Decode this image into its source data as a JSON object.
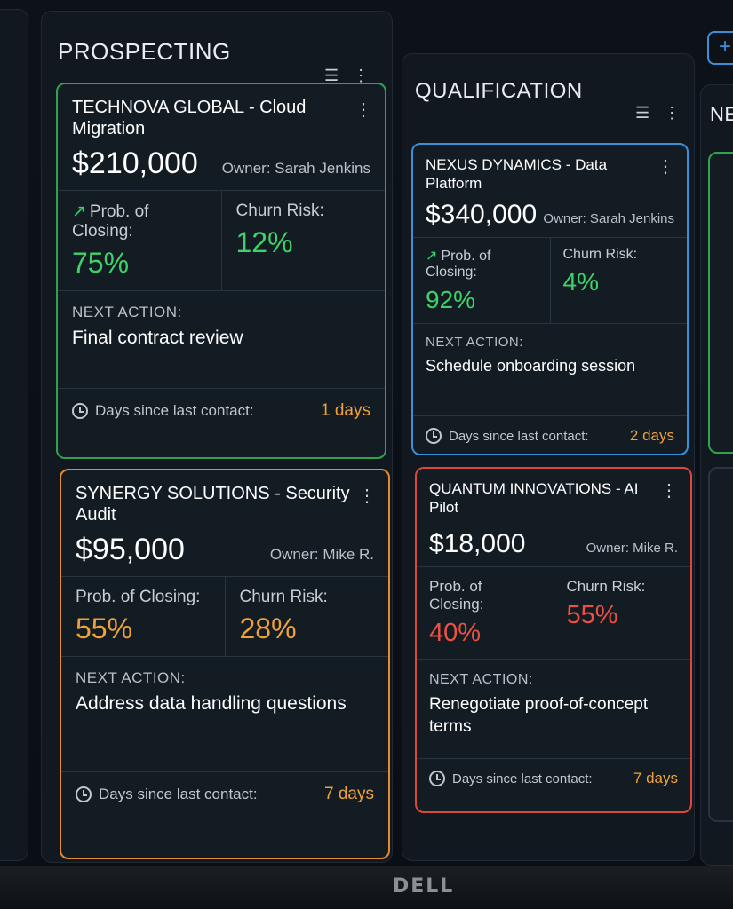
{
  "columns": {
    "prospecting": {
      "title": "PROSPECTING",
      "cards": [
        {
          "title": "TECHNOVA GLOBAL - Cloud Migration",
          "amount": "$210,000",
          "owner": "Owner: Sarah Jenkins",
          "prob_label": "Prob. of Closing:",
          "prob_value": "75%",
          "churn_label": "Churn Risk:",
          "churn_value": "12%",
          "action_label": "NEXT ACTION:",
          "action_text": "Final contract review",
          "contact_label": "Days since last contact:",
          "days": "1 days",
          "status_color": "#2ea44f"
        },
        {
          "title": "SYNERGY SOLUTIONS - Security Audit",
          "amount": "$95,000",
          "owner": "Owner: Mike R.",
          "prob_label": "Prob. of Closing:",
          "prob_value": "55%",
          "churn_label": "Churn Risk:",
          "churn_value": "28%",
          "action_label": "NEXT ACTION:",
          "action_text": "Address data handling questions",
          "contact_label": "Days since last contact:",
          "days": "7 days",
          "status_color": "#e58a2e"
        }
      ]
    },
    "qualification": {
      "title": "QUALIFICATION",
      "cards": [
        {
          "title": "NEXUS DYNAMICS - Data Platform",
          "amount": "$340,000",
          "owner": "Owner: Sarah Jenkins",
          "prob_label": "Prob. of Closing:",
          "prob_value": "92%",
          "churn_label": "Churn Risk:",
          "churn_value": "4%",
          "action_label": "NEXT ACTION:",
          "action_text": "Schedule onboarding session",
          "contact_label": "Days since last contact:",
          "days": "2 days",
          "status_color": "#3b8fd9"
        },
        {
          "title": "QUANTUM INNOVATIONS - AI Pilot",
          "amount": "$18,000",
          "owner": "Owner: Mike R.",
          "prob_label": "Prob. of Closing:",
          "prob_value": "40%",
          "churn_label": "Churn Risk:",
          "churn_value": "55%",
          "action_label": "NEXT ACTION:",
          "action_text": "Renegotiate proof-of-concept terms",
          "contact_label": "Days since last contact:",
          "days": "7 days",
          "status_color": "#d9483b"
        }
      ]
    },
    "next_edge": {
      "title": "NE"
    }
  },
  "icons": {
    "column_filter": "list-filter-icon",
    "column_menu": "more-vertical-icon",
    "card_menu": "more-vertical-icon",
    "trend": "trend-up-icon",
    "clock": "clock-icon",
    "add": "plus-icon"
  },
  "bezel": {
    "brand": "DELL"
  }
}
